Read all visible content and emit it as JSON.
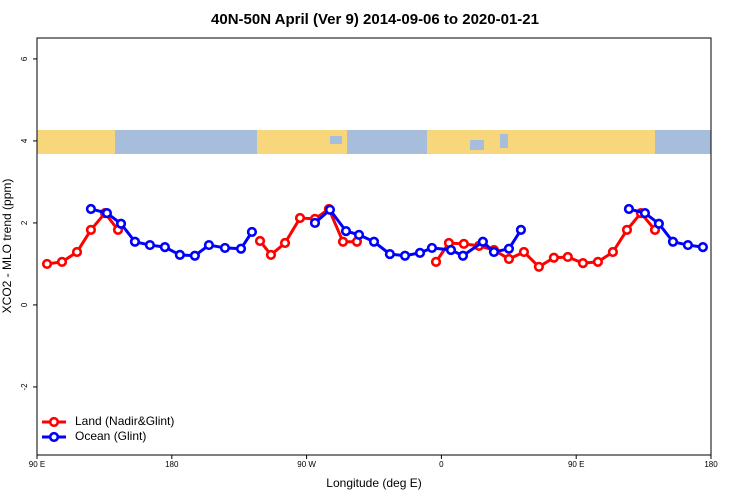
{
  "chart_data": {
    "type": "line",
    "title": "40N-50N April (Ver 9)   2014-09-06 to 2020-01-21",
    "x_label": "Longitude (deg E)",
    "y_label": "XCO2 - MLO trend (ppm)",
    "xlim": [
      90,
      540
    ],
    "ylim": [
      -3.66,
      6.51
    ],
    "xticks": [
      {
        "value": 90,
        "label": "90 E"
      },
      180,
      {
        "value": 270,
        "label": "90 W"
      },
      {
        "value": 360,
        "label": "0"
      },
      {
        "value": 450,
        "label": "90 E"
      },
      {
        "value": 540,
        "label": "180"
      }
    ],
    "yticks": [
      -2,
      0,
      2,
      4,
      6
    ],
    "legend": "bottom-left",
    "series": [
      {
        "name": "Land (Nadir&Glint)",
        "color": "#ff0000",
        "x": [
          96.7,
          106.7,
          116.7,
          126.0,
          135.4,
          144.1,
          null,
          238.9,
          246.2,
          255.6,
          265.6,
          275.6,
          284.9,
          294.3,
          303.6,
          null,
          356.4,
          365.0,
          375.0,
          385.1,
          395.1,
          405.1,
          415.1,
          425.1,
          435.1,
          444.4,
          454.5,
          464.5,
          474.5,
          483.9,
          493.2,
          502.6
        ],
        "values": [
          1.0,
          1.05,
          1.29,
          1.83,
          2.24,
          1.83,
          null,
          1.56,
          1.22,
          1.51,
          2.12,
          2.1,
          2.34,
          1.54,
          1.54,
          null,
          1.05,
          1.51,
          1.49,
          1.44,
          1.34,
          1.12,
          1.29,
          0.93,
          1.15,
          1.17,
          1.02,
          1.05,
          1.29,
          1.83,
          2.24,
          1.83
        ]
      },
      {
        "name": "Ocean (Glint)",
        "color": "#0000ff",
        "x": [
          126.0,
          136.7,
          146.1,
          155.4,
          165.4,
          175.4,
          185.4,
          195.4,
          204.8,
          215.5,
          226.2,
          233.5,
          null,
          275.6,
          285.6,
          296.3,
          305.0,
          315.0,
          325.6,
          335.7,
          345.7,
          353.7,
          366.4,
          374.4,
          387.7,
          395.1,
          405.1,
          413.1,
          null,
          485.2,
          495.9,
          505.2,
          514.6,
          524.6,
          534.6
        ],
        "values": [
          2.34,
          2.24,
          1.98,
          1.54,
          1.46,
          1.41,
          1.22,
          1.2,
          1.46,
          1.39,
          1.37,
          1.78,
          null,
          2.0,
          2.32,
          1.8,
          1.71,
          1.54,
          1.24,
          1.2,
          1.27,
          1.39,
          1.34,
          1.2,
          1.54,
          1.29,
          1.37,
          1.83,
          null,
          2.34,
          2.24,
          1.98,
          1.54,
          1.46,
          1.41
        ]
      }
    ]
  }
}
